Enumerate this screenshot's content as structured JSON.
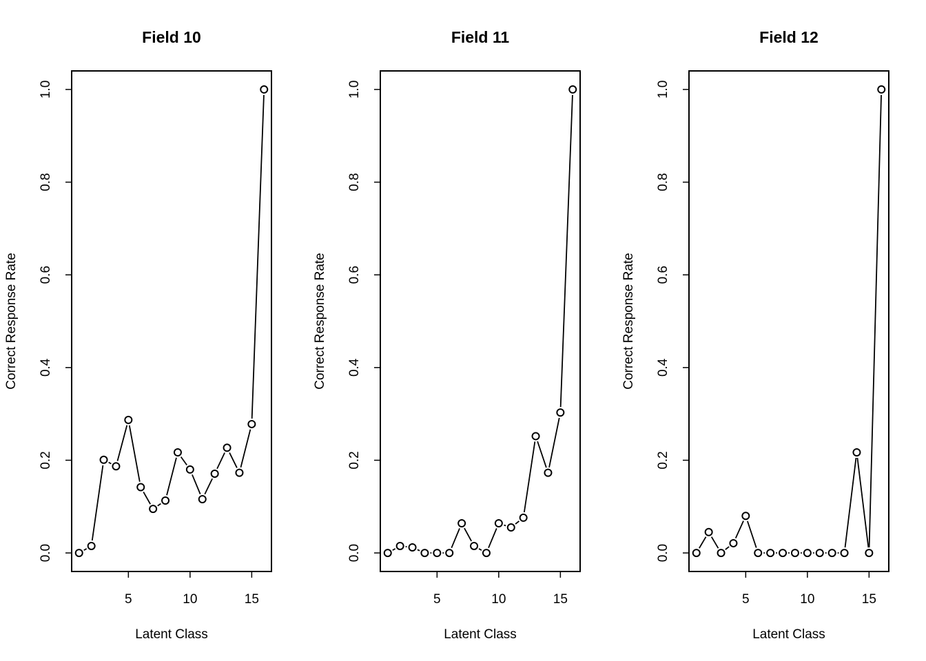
{
  "chart_data": [
    {
      "type": "line",
      "title": "Field 10",
      "xlabel": "Latent Class",
      "ylabel": "Correct Response Rate",
      "xlim": [
        0.4,
        16.6
      ],
      "ylim": [
        -0.04,
        1.04
      ],
      "xticks": [
        5,
        10,
        15
      ],
      "yticks": [
        0.0,
        0.2,
        0.4,
        0.6,
        0.8,
        1.0
      ],
      "x": [
        1,
        2,
        3,
        4,
        5,
        6,
        7,
        8,
        9,
        10,
        11,
        12,
        13,
        14,
        15,
        16
      ],
      "values": [
        0.0,
        0.015,
        0.201,
        0.187,
        0.287,
        0.142,
        0.095,
        0.113,
        0.217,
        0.18,
        0.116,
        0.171,
        0.227,
        0.173,
        0.278,
        1.0
      ],
      "markers": "open-circle",
      "grid": false
    },
    {
      "type": "line",
      "title": "Field 11",
      "xlabel": "Latent Class",
      "ylabel": "Correct Response Rate",
      "xlim": [
        0.4,
        16.6
      ],
      "ylim": [
        -0.04,
        1.04
      ],
      "xticks": [
        5,
        10,
        15
      ],
      "yticks": [
        0.0,
        0.2,
        0.4,
        0.6,
        0.8,
        1.0
      ],
      "x": [
        1,
        2,
        3,
        4,
        5,
        6,
        7,
        8,
        9,
        10,
        11,
        12,
        13,
        14,
        15,
        16
      ],
      "values": [
        0.0,
        0.015,
        0.012,
        0.0,
        0.0,
        0.0,
        0.064,
        0.015,
        0.0,
        0.064,
        0.055,
        0.076,
        0.252,
        0.173,
        0.303,
        1.0
      ],
      "markers": "open-circle",
      "grid": false
    },
    {
      "type": "line",
      "title": "Field 12",
      "xlabel": "Latent Class",
      "ylabel": "Correct Response Rate",
      "xlim": [
        0.4,
        16.6
      ],
      "ylim": [
        -0.04,
        1.04
      ],
      "xticks": [
        5,
        10,
        15
      ],
      "yticks": [
        0.0,
        0.2,
        0.4,
        0.6,
        0.8,
        1.0
      ],
      "x": [
        1,
        2,
        3,
        4,
        5,
        6,
        7,
        8,
        9,
        10,
        11,
        12,
        13,
        14,
        15,
        16
      ],
      "values": [
        0.0,
        0.045,
        0.0,
        0.021,
        0.08,
        0.0,
        0.0,
        0.0,
        0.0,
        0.0,
        0.0,
        0.0,
        0.0,
        0.217,
        0.0,
        1.0
      ],
      "markers": "open-circle",
      "grid": false
    }
  ]
}
